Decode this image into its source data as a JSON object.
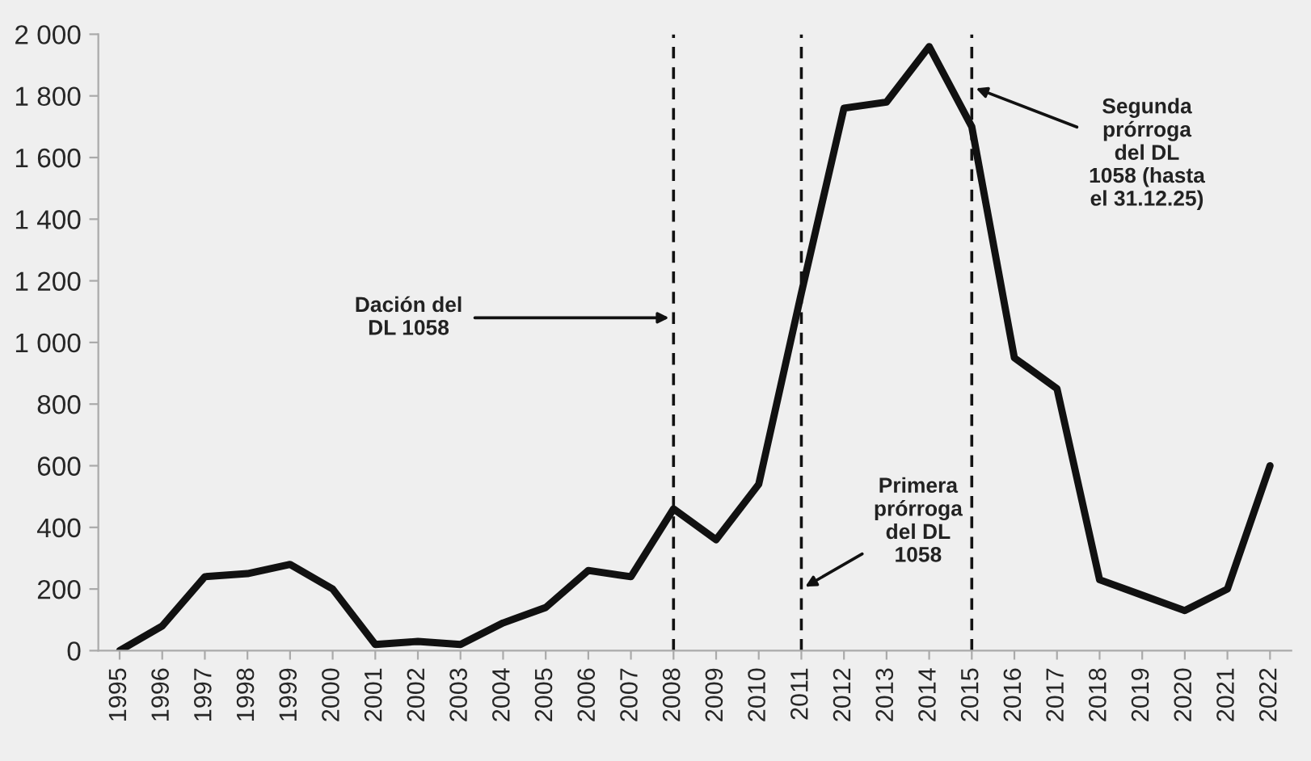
{
  "chart_data": {
    "type": "line",
    "categories": [
      "1995",
      "1996",
      "1997",
      "1998",
      "1999",
      "2000",
      "2001",
      "2002",
      "2003",
      "2004",
      "2005",
      "2006",
      "2007",
      "2008",
      "2009",
      "2010",
      "2011",
      "2012",
      "2013",
      "2014",
      "2015",
      "2016",
      "2017",
      "2018",
      "2019",
      "2020",
      "2021",
      "2022"
    ],
    "series": [
      {
        "color": "#111111",
        "values": [
          0,
          80,
          240,
          250,
          280,
          200,
          20,
          30,
          20,
          90,
          140,
          260,
          240,
          460,
          360,
          540,
          1160,
          1760,
          1780,
          1960,
          1700,
          950,
          850,
          230,
          180,
          130,
          200,
          600
        ]
      }
    ],
    "ylim": [
      0,
      2000
    ],
    "yticks": [
      0,
      200,
      400,
      600,
      800,
      {
        "value": 1000,
        "label": "1 000"
      },
      {
        "value": 1200,
        "label": "1 200"
      },
      {
        "value": 1400,
        "label": "1 400"
      },
      {
        "value": 1600,
        "label": "1 600"
      },
      {
        "value": 1800,
        "label": "1 800"
      },
      {
        "value": 2000,
        "label": "2 000"
      }
    ],
    "ref_lines": [
      {
        "axis": "x",
        "value": "2008",
        "line_style": "dashed",
        "color": "#111111"
      },
      {
        "axis": "x",
        "value": "2011",
        "line_style": "dashed",
        "color": "#111111"
      },
      {
        "axis": "x",
        "value": "2015",
        "line_style": "dashed",
        "color": "#111111"
      }
    ],
    "annotations": [
      {
        "text": "Dación del\nDL 1058",
        "x": "2008",
        "y": 1080
      },
      {
        "text": "Primera\nprórroga\ndel DL\n1058",
        "x": "2011",
        "y": 200
      },
      {
        "text": "Segunda\nprórroga\ndel DL\n1058 (hasta\nel 31.12.25)",
        "x": "2015",
        "y": 1830
      }
    ],
    "grid": false,
    "legend": false,
    "marker": "none",
    "line_style": "solid"
  }
}
